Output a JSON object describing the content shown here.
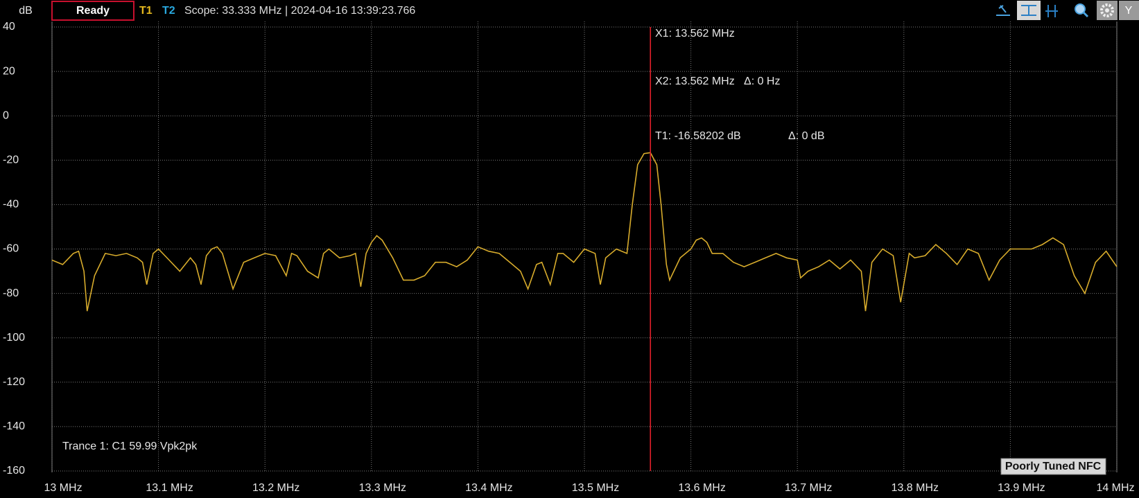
{
  "toolbar": {
    "status": "Ready",
    "trace1": "T1",
    "trace2": "T2",
    "info": "Scope: 33.333 MHz | 2024-04-16 13:39:23.766",
    "y_button": "Y"
  },
  "chart_data": {
    "type": "line",
    "ylabel": "dB",
    "x": [
      13.0,
      13.01,
      13.02,
      13.025,
      13.03,
      13.033,
      13.04,
      13.05,
      13.06,
      13.07,
      13.08,
      13.085,
      13.089,
      13.095,
      13.1,
      13.11,
      13.12,
      13.13,
      13.135,
      13.14,
      13.145,
      13.15,
      13.155,
      13.16,
      13.17,
      13.18,
      13.19,
      13.2,
      13.21,
      13.22,
      13.225,
      13.23,
      13.24,
      13.25,
      13.255,
      13.26,
      13.27,
      13.28,
      13.285,
      13.29,
      13.295,
      13.3,
      13.305,
      13.31,
      13.32,
      13.33,
      13.34,
      13.35,
      13.36,
      13.37,
      13.38,
      13.39,
      13.4,
      13.41,
      13.42,
      13.43,
      13.44,
      13.447,
      13.455,
      13.46,
      13.468,
      13.475,
      13.48,
      13.49,
      13.5,
      13.51,
      13.515,
      13.52,
      13.53,
      13.54,
      13.545,
      13.55,
      13.556,
      13.562,
      13.568,
      13.572,
      13.577,
      13.58,
      13.59,
      13.6,
      13.605,
      13.61,
      13.615,
      13.62,
      13.63,
      13.64,
      13.65,
      13.66,
      13.67,
      13.68,
      13.69,
      13.7,
      13.703,
      13.71,
      13.72,
      13.73,
      13.74,
      13.75,
      13.76,
      13.764,
      13.77,
      13.78,
      13.79,
      13.797,
      13.805,
      13.81,
      13.82,
      13.83,
      13.84,
      13.85,
      13.86,
      13.87,
      13.88,
      13.89,
      13.9,
      13.91,
      13.92,
      13.93,
      13.94,
      13.95,
      13.96,
      13.97,
      13.98,
      13.99,
      14.0
    ],
    "values": [
      -65,
      -67,
      -62,
      -61,
      -70,
      -88,
      -72,
      -62,
      -63,
      -62,
      -64,
      -66,
      -76,
      -62,
      -60,
      -65,
      -70,
      -64,
      -67,
      -76,
      -63,
      -60,
      -59,
      -62,
      -78,
      -66,
      -64,
      -62,
      -63,
      -72,
      -62,
      -63,
      -70,
      -73,
      -62,
      -60,
      -64,
      -63,
      -62,
      -77,
      -62,
      -57,
      -54,
      -56,
      -64,
      -74,
      -74,
      -72,
      -66,
      -66,
      -68,
      -65,
      -59,
      -61,
      -62,
      -66,
      -70,
      -78,
      -67,
      -66,
      -76,
      -62,
      -62,
      -66,
      -60,
      -62,
      -76,
      -64,
      -60,
      -62,
      -40,
      -22,
      -17,
      -16.6,
      -22,
      -40,
      -67,
      -74,
      -64,
      -60,
      -56,
      -55,
      -57,
      -62,
      -62,
      -66,
      -68,
      -66,
      -64,
      -62,
      -64,
      -65,
      -73,
      -70,
      -68,
      -65,
      -69,
      -65,
      -70,
      -88,
      -66,
      -60,
      -63,
      -84,
      -62,
      -64,
      -63,
      -58,
      -62,
      -67,
      -60,
      -62,
      -74,
      -65,
      -60,
      -60,
      -60,
      -58,
      -55,
      -58,
      -72,
      -80,
      -66,
      -61,
      -68
    ],
    "color": "#d8ac2c",
    "xlim": [
      13,
      14
    ],
    "xticks": [
      {
        "value": 13,
        "label": "13 MHz"
      },
      {
        "value": 13.1,
        "label": "13.1 MHz"
      },
      {
        "value": 13.2,
        "label": "13.2 MHz"
      },
      {
        "value": 13.3,
        "label": "13.3 MHz"
      },
      {
        "value": 13.4,
        "label": "13.4 MHz"
      },
      {
        "value": 13.5,
        "label": "13.5 MHz"
      },
      {
        "value": 13.6,
        "label": "13.6 MHz"
      },
      {
        "value": 13.7,
        "label": "13.7 MHz"
      },
      {
        "value": 13.8,
        "label": "13.8 MHz"
      },
      {
        "value": 13.9,
        "label": "13.9 MHz"
      },
      {
        "value": 14,
        "label": "14 MHz"
      }
    ],
    "ylim": [
      -160,
      40
    ],
    "yticks": [
      40,
      20,
      0,
      -20,
      -40,
      -60,
      -80,
      -100,
      -120,
      -140,
      -160
    ],
    "grid": true,
    "marker_x": 13.562,
    "marker_color": "#e0202a",
    "annotations": [
      "X1: 13.562 MHz",
      "X2: 13.562 MHz",
      "Δ: 0 Hz",
      "T1: -16.58202 dB",
      "Δ: 0 dB",
      "Trance 1: C1 59.99 Vpk2pk"
    ],
    "badge": "Poorly Tuned NFC"
  }
}
